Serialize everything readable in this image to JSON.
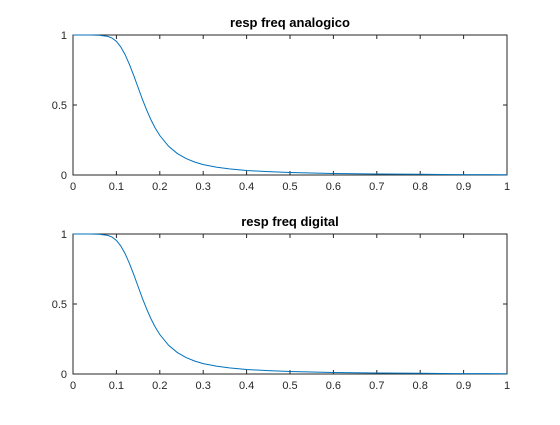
{
  "chart_data": [
    {
      "type": "line",
      "title": "resp freq analogico",
      "xlabel": "",
      "ylabel": "",
      "xlim": [
        0,
        1
      ],
      "ylim": [
        0,
        1
      ],
      "xticks": [
        0,
        0.1,
        0.2,
        0.3,
        0.4,
        0.5,
        0.6,
        0.7,
        0.8,
        0.9,
        1
      ],
      "xtick_labels": [
        "0",
        "0.1",
        "0.2",
        "0.3",
        "0.4",
        "0.5",
        "0.6",
        "0.7",
        "0.8",
        "0.9",
        "1"
      ],
      "yticks": [
        0,
        0.5,
        1
      ],
      "ytick_labels": [
        "0",
        "0.5",
        "1"
      ],
      "grid": false,
      "series": [
        {
          "color": "#0072BD",
          "x": [
            0,
            0.02,
            0.04,
            0.06,
            0.08,
            0.09,
            0.1,
            0.11,
            0.12,
            0.13,
            0.14,
            0.15,
            0.16,
            0.17,
            0.18,
            0.19,
            0.2,
            0.22,
            0.24,
            0.26,
            0.28,
            0.3,
            0.33,
            0.36,
            0.4,
            0.45,
            0.5,
            0.55,
            0.6,
            0.65,
            0.7,
            0.75,
            0.8,
            0.85,
            0.9,
            0.95,
            1
          ],
          "y": [
            1,
            1,
            1,
            0.998,
            0.99,
            0.978,
            0.955,
            0.915,
            0.86,
            0.79,
            0.71,
            0.625,
            0.54,
            0.462,
            0.392,
            0.332,
            0.282,
            0.206,
            0.154,
            0.118,
            0.093,
            0.074,
            0.056,
            0.044,
            0.032,
            0.024,
            0.018,
            0.014,
            0.011,
            0.009,
            0.007,
            0.006,
            0.005,
            0.004,
            0.003,
            0.003,
            0.002
          ]
        }
      ]
    },
    {
      "type": "line",
      "title": "resp freq digital",
      "xlabel": "",
      "ylabel": "",
      "xlim": [
        0,
        1
      ],
      "ylim": [
        0,
        1
      ],
      "xticks": [
        0,
        0.1,
        0.2,
        0.3,
        0.4,
        0.5,
        0.6,
        0.7,
        0.8,
        0.9,
        1
      ],
      "xtick_labels": [
        "0",
        "0.1",
        "0.2",
        "0.3",
        "0.4",
        "0.5",
        "0.6",
        "0.7",
        "0.8",
        "0.9",
        "1"
      ],
      "yticks": [
        0,
        0.5,
        1
      ],
      "ytick_labels": [
        "0",
        "0.5",
        "1"
      ],
      "grid": false,
      "series": [
        {
          "color": "#0072BD",
          "x": [
            0,
            0.02,
            0.04,
            0.06,
            0.08,
            0.09,
            0.1,
            0.11,
            0.12,
            0.13,
            0.14,
            0.15,
            0.16,
            0.17,
            0.18,
            0.19,
            0.2,
            0.22,
            0.24,
            0.26,
            0.28,
            0.3,
            0.33,
            0.36,
            0.4,
            0.45,
            0.5,
            0.55,
            0.6,
            0.65,
            0.7,
            0.75,
            0.8,
            0.85,
            0.9,
            0.95,
            1
          ],
          "y": [
            1,
            1,
            1,
            0.998,
            0.99,
            0.978,
            0.955,
            0.915,
            0.86,
            0.79,
            0.71,
            0.625,
            0.54,
            0.462,
            0.392,
            0.332,
            0.282,
            0.206,
            0.154,
            0.118,
            0.093,
            0.074,
            0.056,
            0.044,
            0.032,
            0.024,
            0.018,
            0.014,
            0.011,
            0.009,
            0.007,
            0.006,
            0.005,
            0.004,
            0.003,
            0.003,
            0.002
          ]
        }
      ]
    }
  ]
}
